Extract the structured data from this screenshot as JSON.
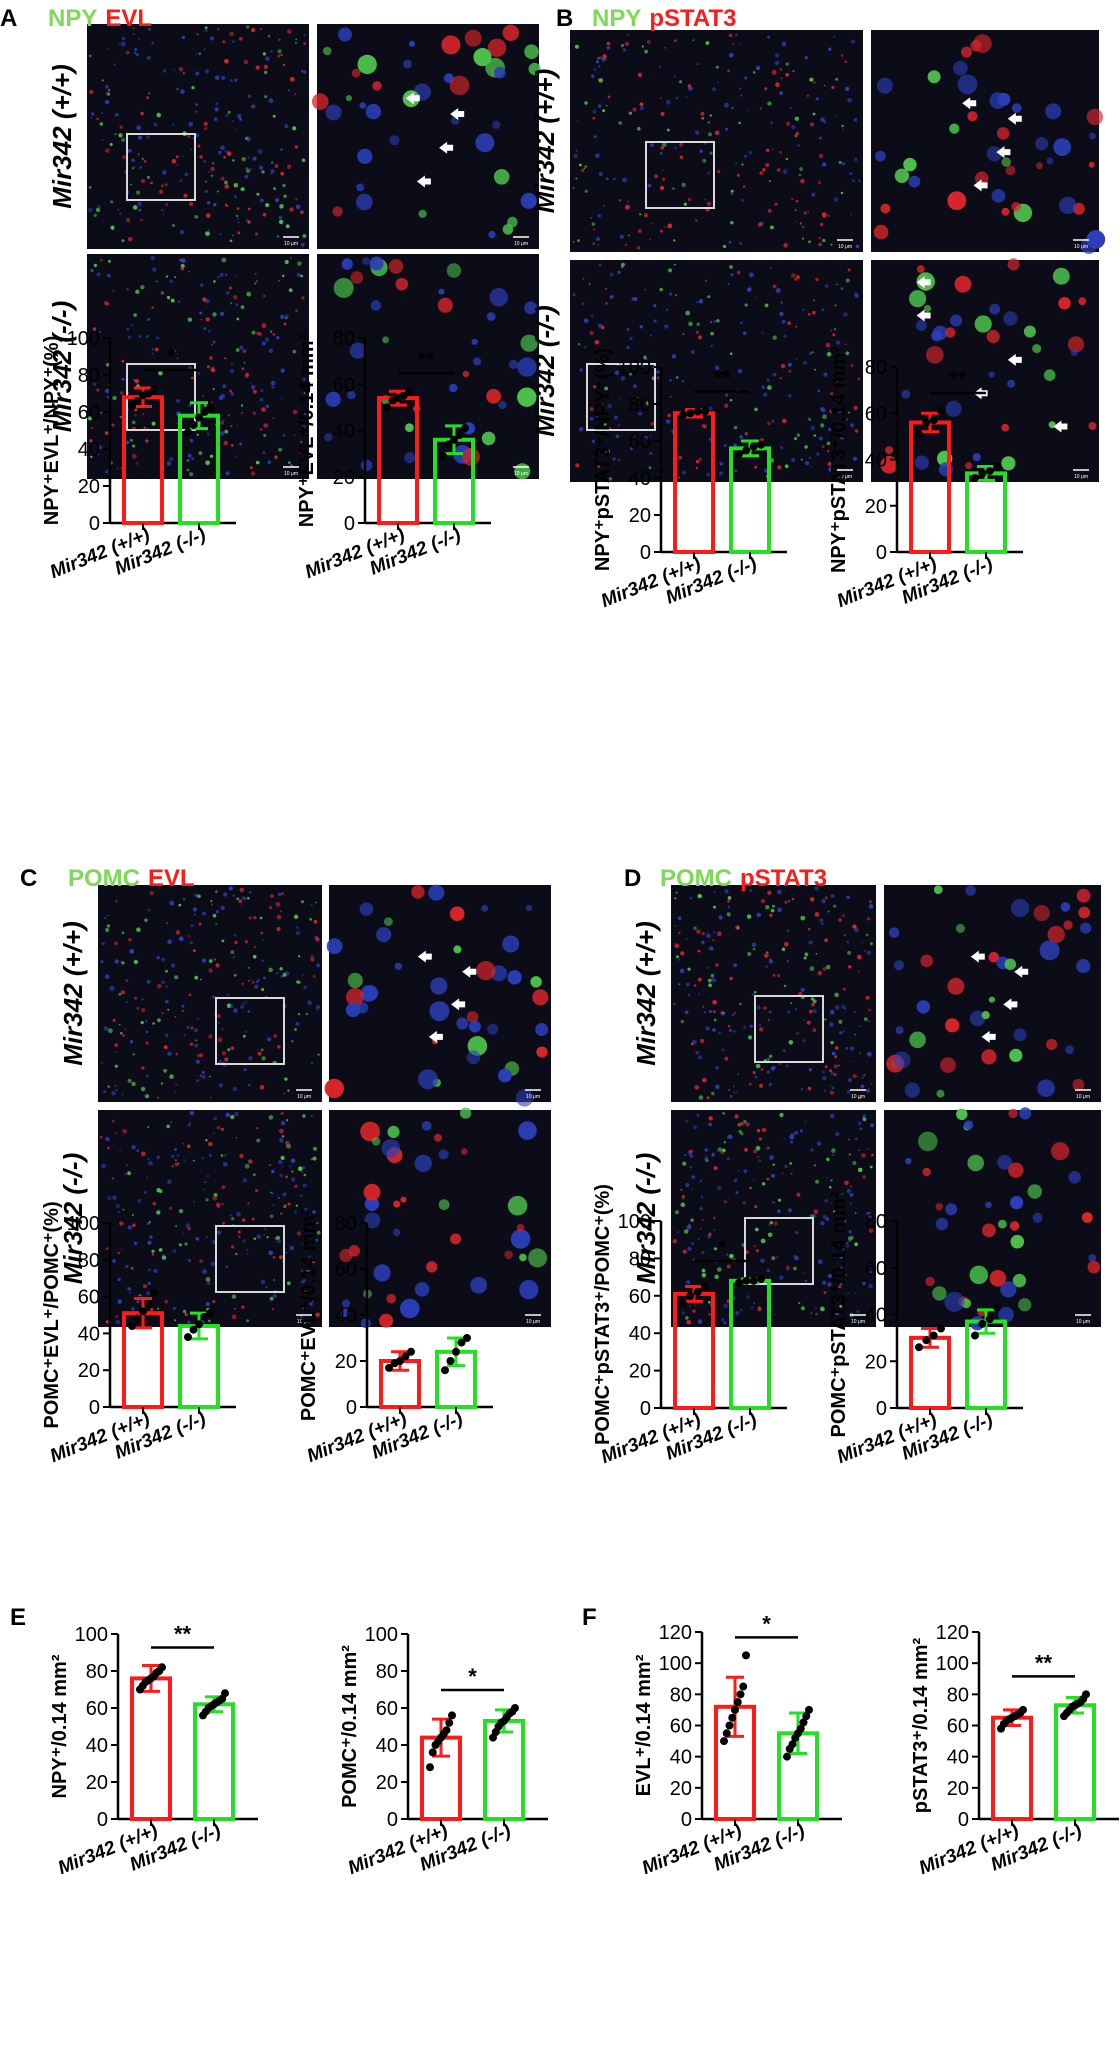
{
  "panels": [
    {
      "letter": "A",
      "stain_green": "NPY",
      "stain_red": "EVL",
      "row_labels": [
        "Mir342 (+/+)",
        "Mir342 (-/-)"
      ],
      "scale_label": "10 μm"
    },
    {
      "letter": "B",
      "stain_green": "NPY",
      "stain_red": "pSTAT3",
      "row_labels": [
        "Mir342 (+/+)",
        "Mir342 (-/-)"
      ],
      "scale_label": "10 μm"
    },
    {
      "letter": "C",
      "stain_green": "POMC",
      "stain_red": "EVL",
      "row_labels": [
        "Mir342 (+/+)",
        "Mir342 (-/-)"
      ],
      "scale_label": "10 μm"
    },
    {
      "letter": "D",
      "stain_green": "POMC",
      "stain_red": "pSTAT3",
      "row_labels": [
        "Mir342 (+/+)",
        "Mir342 (-/-)"
      ],
      "scale_label": "10 μm"
    },
    {
      "letter": "E"
    },
    {
      "letter": "F"
    }
  ],
  "colors": {
    "wt": "#ff1a1a",
    "ko": "#22e022",
    "green_stain": "#7ed957",
    "red_stain": "#ff1a1a",
    "tissue": "#0c0c18"
  },
  "chart_data": [
    {
      "type": "bar",
      "panel": "A",
      "categories": [
        "Mir342 (+/+)",
        "Mir342 (-/-)"
      ],
      "values": [
        68,
        58
      ],
      "errors": [
        5,
        7
      ],
      "points": [
        [
          63,
          66,
          69,
          70,
          72
        ],
        [
          49,
          53,
          57,
          60,
          62
        ]
      ],
      "ylabel": "NPY⁺EVL⁺/NPY⁺(%)",
      "ylim": [
        0,
        100
      ],
      "yticks": [
        0,
        20,
        40,
        60,
        80,
        100
      ],
      "significance": "*"
    },
    {
      "type": "bar",
      "panel": "A",
      "categories": [
        "Mir342 (+/+)",
        "Mir342 (-/-)"
      ],
      "values": [
        54,
        36
      ],
      "errors": [
        3,
        6
      ],
      "points": [
        [
          50,
          53,
          54,
          55,
          57
        ],
        [
          29,
          34,
          36,
          38,
          41
        ]
      ],
      "ylabel": "NPY⁺EVL⁺/0.14 mm²",
      "ylim": [
        0,
        80
      ],
      "yticks": [
        0,
        20,
        40,
        60,
        80
      ],
      "significance": "**"
    },
    {
      "type": "bar",
      "panel": "B",
      "categories": [
        "Mir342 (+/+)",
        "Mir342 (-/-)"
      ],
      "values": [
        75,
        56
      ],
      "errors": [
        2,
        4
      ],
      "points": [
        [
          74,
          75,
          76,
          76
        ],
        [
          53,
          55,
          57,
          58
        ]
      ],
      "ylabel": "NPY⁺pSTAT3⁺/NPY⁺(%)",
      "ylim": [
        0,
        100
      ],
      "yticks": [
        0,
        20,
        40,
        60,
        80,
        100
      ],
      "significance": "**"
    },
    {
      "type": "bar",
      "panel": "B",
      "categories": [
        "Mir342 (+/+)",
        "Mir342 (-/-)"
      ],
      "values": [
        56,
        34
      ],
      "errors": [
        4,
        3
      ],
      "points": [
        [
          51,
          56,
          57,
          61
        ],
        [
          32,
          34,
          35,
          37
        ]
      ],
      "ylabel": "NPY⁺pSTAT3⁺/0.14 mm²",
      "ylim": [
        0,
        80
      ],
      "yticks": [
        0,
        20,
        40,
        60,
        80
      ],
      "significance": "**"
    },
    {
      "type": "bar",
      "panel": "C",
      "categories": [
        "Mir342 (+/+)",
        "Mir342 (-/-)"
      ],
      "values": [
        51,
        44
      ],
      "errors": [
        8,
        7
      ],
      "points": [
        [
          44,
          48,
          52,
          56,
          62
        ],
        [
          38,
          42,
          45,
          49,
          51
        ]
      ],
      "ylabel": "POMC⁺EVL⁺/POMC⁺(%)",
      "ylim": [
        0,
        100
      ],
      "yticks": [
        0,
        20,
        40,
        60,
        80,
        100
      ],
      "significance": ""
    },
    {
      "type": "bar",
      "panel": "C",
      "categories": [
        "Mir342 (+/+)",
        "Mir342 (-/-)"
      ],
      "values": [
        20,
        24
      ],
      "errors": [
        4,
        6
      ],
      "points": [
        [
          17,
          19,
          20,
          22,
          24
        ],
        [
          16,
          20,
          24,
          28,
          30
        ]
      ],
      "ylabel": "POMC⁺EVL⁺/0.14 mm²",
      "ylim": [
        0,
        80
      ],
      "yticks": [
        0,
        20,
        40,
        60,
        80
      ],
      "significance": ""
    },
    {
      "type": "bar",
      "panel": "D",
      "categories": [
        "Mir342 (+/+)",
        "Mir342 (-/-)"
      ],
      "values": [
        61,
        68
      ],
      "errors": [
        4,
        1
      ],
      "points": [
        [
          56,
          60,
          62,
          65
        ],
        [
          67,
          68,
          68,
          69
        ]
      ],
      "ylabel": "POMC⁺pSTAT3⁺/POMC⁺(%)",
      "ylim": [
        0,
        100
      ],
      "yticks": [
        0,
        20,
        40,
        60,
        80,
        100
      ],
      "significance": "*"
    },
    {
      "type": "bar",
      "panel": "D",
      "categories": [
        "Mir342 (+/+)",
        "Mir342 (-/-)"
      ],
      "values": [
        30,
        37
      ],
      "errors": [
        4,
        5
      ],
      "points": [
        [
          26,
          29,
          31,
          34
        ],
        [
          31,
          36,
          38,
          43
        ]
      ],
      "ylabel": "POMC⁺pSTAT3⁺/0.14 mm²",
      "ylim": [
        0,
        80
      ],
      "yticks": [
        0,
        20,
        40,
        60,
        80
      ],
      "significance": ""
    },
    {
      "type": "bar",
      "panel": "E",
      "categories": [
        "Mir342 (+/+)",
        "Mir342 (-/-)"
      ],
      "values": [
        76,
        62
      ],
      "errors": [
        7,
        4
      ],
      "points": [
        [
          70,
          72,
          74,
          75,
          76,
          77,
          79,
          80,
          82
        ],
        [
          56,
          58,
          60,
          61,
          62,
          63,
          64,
          65,
          68
        ]
      ],
      "ylabel": "NPY⁺/0.14 mm²",
      "ylim": [
        0,
        100
      ],
      "yticks": [
        0,
        20,
        40,
        60,
        80,
        100
      ],
      "significance": "**"
    },
    {
      "type": "bar",
      "panel": "E",
      "categories": [
        "Mir342 (+/+)",
        "Mir342 (-/-)"
      ],
      "values": [
        44,
        53
      ],
      "errors": [
        10,
        6
      ],
      "points": [
        [
          28,
          36,
          40,
          42,
          44,
          46,
          48,
          52,
          56
        ],
        [
          44,
          47,
          50,
          52,
          53,
          55,
          57,
          58,
          60
        ]
      ],
      "ylabel": "POMC⁺/0.14 mm²",
      "ylim": [
        0,
        100
      ],
      "yticks": [
        0,
        20,
        40,
        60,
        80,
        100
      ],
      "significance": "*"
    },
    {
      "type": "bar",
      "panel": "F",
      "categories": [
        "Mir342 (+/+)",
        "Mir342 (-/-)"
      ],
      "values": [
        72,
        55
      ],
      "errors": [
        19,
        13
      ],
      "points": [
        [
          50,
          55,
          60,
          65,
          70,
          75,
          80,
          85,
          105
        ],
        [
          40,
          45,
          48,
          52,
          55,
          58,
          62,
          66,
          70
        ]
      ],
      "ylabel": "EVL⁺/0.14 mm²",
      "ylim": [
        0,
        120
      ],
      "yticks": [
        0,
        20,
        40,
        60,
        80,
        100,
        120
      ],
      "significance": "*"
    },
    {
      "type": "bar",
      "panel": "F",
      "categories": [
        "Mir342 (+/+)",
        "Mir342 (-/-)"
      ],
      "values": [
        65,
        73
      ],
      "errors": [
        5,
        5
      ],
      "points": [
        [
          58,
          61,
          63,
          64,
          65,
          66,
          67,
          68,
          70
        ],
        [
          66,
          68,
          70,
          72,
          73,
          74,
          75,
          77,
          80
        ]
      ],
      "ylabel": "pSTAT3⁺/0.14 mm²",
      "ylim": [
        0,
        120
      ],
      "yticks": [
        0,
        20,
        40,
        60,
        80,
        100,
        120
      ],
      "significance": "**"
    }
  ]
}
